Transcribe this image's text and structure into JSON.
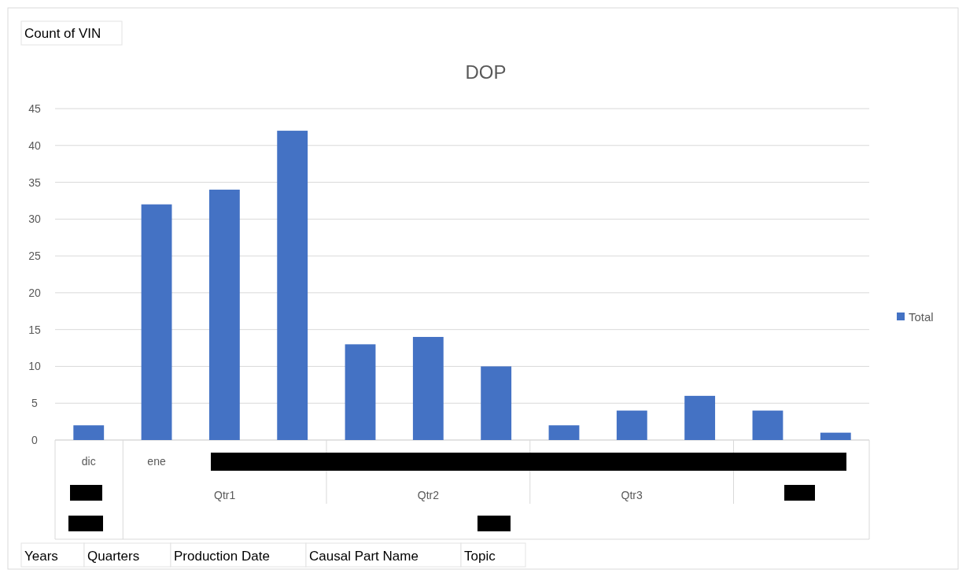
{
  "chart_data": {
    "type": "bar",
    "title": "DOP",
    "categories": [
      "dic",
      "ene",
      null,
      null,
      null,
      null,
      null,
      null,
      null,
      null,
      null,
      null
    ],
    "series": [
      {
        "name": "Total",
        "color": "#4472c4",
        "values": [
          2,
          32,
          34,
          42,
          13,
          14,
          10,
          2,
          4,
          6,
          4,
          1
        ]
      }
    ],
    "ylim": [
      0,
      45
    ],
    "yticks": [
      0,
      5,
      10,
      15,
      20,
      25,
      30,
      35,
      40,
      45
    ],
    "grid": "y",
    "legend": "right",
    "annotations": [
      "Count of  VIN",
      "Years",
      "Quarters",
      "Production Date",
      "Causal Part Name",
      "Topic",
      "Qtr1",
      "Qtr2",
      "Qtr3"
    ]
  }
}
